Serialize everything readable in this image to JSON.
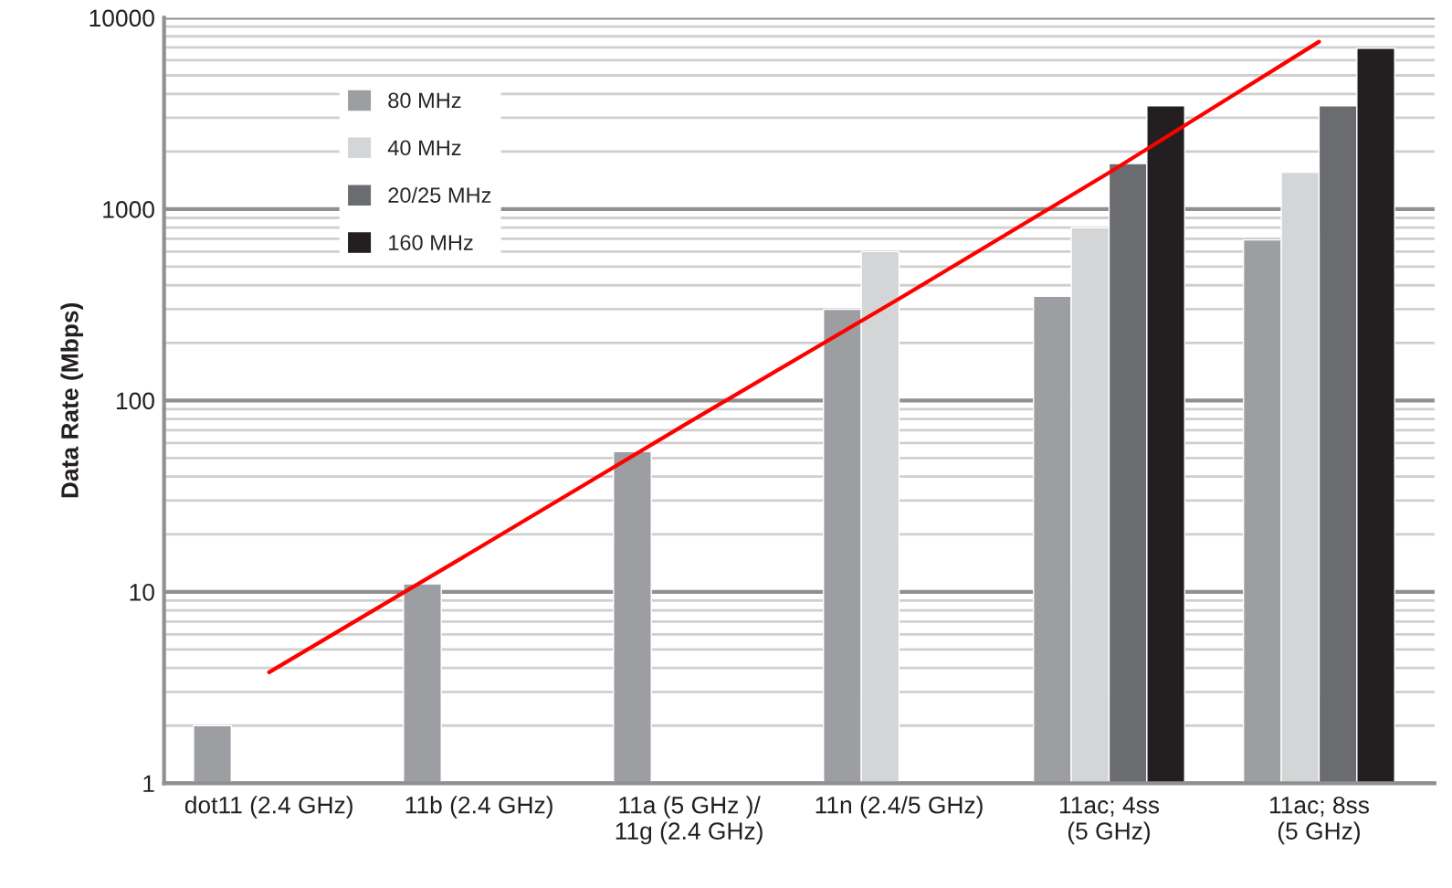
{
  "chart_data": {
    "type": "bar",
    "ylabel": "Data Rate (Mbps)",
    "categories": [
      "dot11 (2.4 GHz)",
      "11b (2.4 GHz)",
      "11a (5 GHz )/\n11g (2.4 GHz)",
      "11n (2.4/5 GHz)",
      "11ac; 4ss\n(5 GHz)",
      "11ac; 8ss\n(5 GHz)"
    ],
    "series": [
      {
        "name": "80 MHz",
        "color": "#9d9ea2",
        "values": [
          2,
          11,
          54,
          300,
          350,
          690
        ]
      },
      {
        "name": "40 MHz",
        "color": "#d4d5d7",
        "values": [
          null,
          null,
          null,
          600,
          800,
          1560
        ]
      },
      {
        "name": "20/25 MHz",
        "color": "#6b6c70",
        "values": [
          null,
          null,
          null,
          null,
          1730,
          3470
        ]
      },
      {
        "name": "160 MHz",
        "color": "#231f20",
        "values": [
          null,
          null,
          null,
          null,
          3470,
          6930
        ]
      },
      {
        "type": "line",
        "color": "#ff0000",
        "values": [
          3.8,
          17,
          77,
          340,
          1550,
          7500
        ]
      }
    ],
    "log": true,
    "ylim": [
      1,
      10000
    ],
    "yticks": [
      1,
      10,
      100,
      1000,
      10000
    ],
    "grid": "y",
    "legend": "upper left"
  }
}
